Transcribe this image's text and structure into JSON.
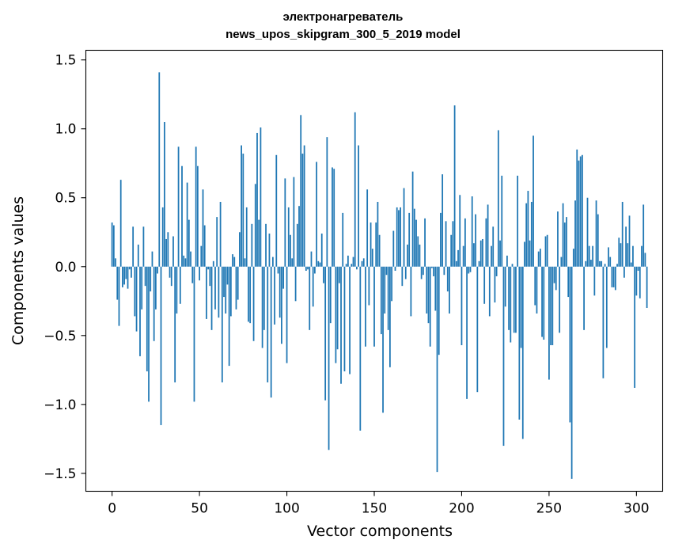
{
  "chart_data": {
    "type": "bar",
    "title": [
      "электронагреватель",
      "news_upos_skipgram_300_5_2019 model"
    ],
    "xlabel": "Vector components",
    "ylabel": "Components values",
    "xlim": [
      -15,
      315
    ],
    "ylim": [
      -1.63,
      1.57
    ],
    "xticks": [
      0,
      50,
      100,
      150,
      200,
      250,
      300
    ],
    "xtick_labels": [
      "0",
      "50",
      "100",
      "150",
      "200",
      "250",
      "300"
    ],
    "yticks": [
      -1.5,
      -1.0,
      -0.5,
      0.0,
      0.5,
      1.0,
      1.5
    ],
    "ytick_labels": [
      "−1.5",
      "−1.0",
      "−0.5",
      "0.0",
      "0.5",
      "1.0",
      "1.5"
    ],
    "grid": false,
    "bar_color": "#1f77b4",
    "values": [
      0.32,
      0.3,
      0.06,
      -0.24,
      -0.43,
      0.63,
      -0.15,
      -0.13,
      -0.09,
      -0.16,
      -0.02,
      -0.08,
      0.29,
      -0.36,
      -0.47,
      0.16,
      -0.65,
      -0.31,
      0.29,
      -0.14,
      -0.76,
      -0.98,
      -0.18,
      0.11,
      -0.54,
      -0.31,
      -0.05,
      1.41,
      -1.15,
      0.43,
      1.05,
      0.2,
      0.25,
      -0.08,
      -0.14,
      0.22,
      -0.84,
      -0.34,
      0.87,
      -0.27,
      0.73,
      0.08,
      0.06,
      0.61,
      0.34,
      0.11,
      -0.12,
      -0.98,
      0.87,
      0.73,
      -0.1,
      0.15,
      0.56,
      0.3,
      -0.38,
      -0.02,
      -0.14,
      -0.46,
      0.04,
      -0.31,
      0.36,
      -0.37,
      0.47,
      -0.84,
      -0.22,
      -0.34,
      -0.13,
      -0.72,
      -0.36,
      0.09,
      0.07,
      -0.31,
      -0.24,
      0.25,
      0.88,
      0.82,
      0.06,
      0.43,
      -0.4,
      -0.41,
      0.31,
      -0.54,
      0.6,
      0.97,
      0.34,
      1.01,
      -0.59,
      -0.46,
      0.31,
      -0.84,
      0.24,
      -0.95,
      0.07,
      -0.42,
      0.81,
      -0.05,
      -0.37,
      -0.56,
      -0.16,
      0.64,
      -0.7,
      0.43,
      0.23,
      0.06,
      0.65,
      -0.25,
      0.31,
      0.44,
      1.1,
      0.82,
      0.88,
      -0.03,
      -0.02,
      -0.46,
      0.11,
      -0.29,
      -0.05,
      0.76,
      0.04,
      0.03,
      0.24,
      -0.12,
      -0.97,
      0.94,
      -1.33,
      -0.41,
      0.72,
      0.71,
      -0.7,
      -0.6,
      -0.12,
      -0.85,
      0.39,
      -0.76,
      0.02,
      0.08,
      -0.78,
      0.02,
      0.07,
      1.12,
      -0.02,
      0.88,
      -1.19,
      0.04,
      0.06,
      -0.58,
      0.56,
      -0.28,
      0.32,
      0.13,
      -0.58,
      0.32,
      0.47,
      0.23,
      -0.49,
      -1.06,
      -0.34,
      -0.06,
      -0.46,
      -0.73,
      -0.25,
      0.26,
      -0.03,
      0.43,
      0.41,
      0.43,
      -0.14,
      0.57,
      -0.09,
      0.16,
      0.39,
      -0.36,
      0.69,
      0.42,
      0.34,
      0.22,
      0.16,
      -0.09,
      -0.06,
      0.35,
      -0.34,
      -0.41,
      -0.58,
      -0.01,
      -0.07,
      -0.32,
      -1.49,
      -0.64,
      0.39,
      0.67,
      -0.06,
      0.33,
      -0.18,
      -0.34,
      0.23,
      0.33,
      1.17,
      0.04,
      0.12,
      0.52,
      -0.57,
      0.15,
      0.35,
      -0.96,
      -0.05,
      -0.04,
      0.51,
      0.17,
      0.38,
      -0.91,
      0.04,
      0.19,
      0.2,
      -0.27,
      0.35,
      0.45,
      -0.36,
      0.15,
      0.29,
      -0.26,
      -0.07,
      0.99,
      0.19,
      0.66,
      -1.3,
      -0.29,
      0.08,
      -0.46,
      -0.55,
      0.02,
      -0.48,
      -0.48,
      0.66,
      -1.11,
      -0.59,
      -1.25,
      0.18,
      0.46,
      0.55,
      0.19,
      0.47,
      0.95,
      -0.28,
      -0.34,
      0.11,
      0.13,
      -0.51,
      -0.53,
      0.22,
      0.23,
      -0.82,
      -0.57,
      -0.57,
      -0.12,
      -0.17,
      0.4,
      -0.48,
      0.07,
      0.46,
      0.32,
      0.36,
      -0.22,
      -1.13,
      -1.54,
      0.13,
      0.48,
      0.85,
      0.77,
      0.8,
      0.81,
      -0.46,
      0.04,
      0.5,
      0.15,
      0.05,
      0.15,
      -0.21,
      0.48,
      0.38,
      0.04,
      0.04,
      -0.81,
      0.02,
      -0.59,
      0.14,
      0.07,
      -0.15,
      -0.15,
      -0.17,
      0.02,
      0.21,
      0.17,
      0.47,
      -0.08,
      0.29,
      0.17,
      0.37,
      0.03,
      0.15,
      -0.88,
      -0.21,
      -0.03,
      -0.23,
      0.15,
      0.45,
      0.1,
      -0.3
    ]
  }
}
